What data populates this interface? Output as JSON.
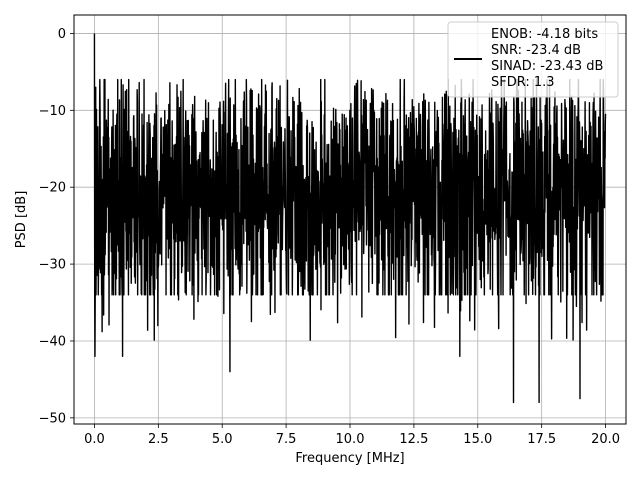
{
  "chart_data": {
    "type": "line",
    "xlabel": "Frequency [MHz]",
    "ylabel": "PSD [dB]",
    "xlim": [
      -0.8,
      20.8
    ],
    "ylim": [
      -50.8,
      2.4
    ],
    "xticks": [
      0.0,
      2.5,
      5.0,
      7.5,
      10.0,
      12.5,
      15.0,
      17.5,
      20.0
    ],
    "xtick_labels": [
      "0.0",
      "2.5",
      "5.0",
      "7.5",
      "10.0",
      "12.5",
      "15.0",
      "17.5",
      "20.0"
    ],
    "yticks": [
      0,
      -10,
      -20,
      -30,
      -40,
      -50
    ],
    "ytick_labels": [
      "0",
      "−10",
      "−20",
      "−30",
      "−40",
      "−50"
    ],
    "grid": true,
    "legend_position": "top-right",
    "legend": [
      "ENOB: -4.18 bits",
      "SNR: -23.4 dB",
      "SINAD: -23.43 dB",
      "SFDR: 1.3"
    ],
    "series": [
      {
        "color": "#000000",
        "x_start": 0.0,
        "x_end": 20.0,
        "num_points": 2000,
        "noise_floor_db": -18.5,
        "fluctuation_range_db": [
          -48.0,
          -6.0
        ],
        "peaks": [
          {
            "x": 0.0,
            "y": 0.0
          },
          {
            "x": 0.05,
            "y": -7.0
          }
        ],
        "dips": [
          {
            "x": 0.02,
            "y": -42.0
          },
          {
            "x": 1.1,
            "y": -42.0
          },
          {
            "x": 5.3,
            "y": -44.0
          },
          {
            "x": 14.3,
            "y": -42.0
          },
          {
            "x": 16.4,
            "y": -48.0
          },
          {
            "x": 17.4,
            "y": -48.0
          },
          {
            "x": 19.0,
            "y": -47.5
          }
        ]
      }
    ]
  }
}
